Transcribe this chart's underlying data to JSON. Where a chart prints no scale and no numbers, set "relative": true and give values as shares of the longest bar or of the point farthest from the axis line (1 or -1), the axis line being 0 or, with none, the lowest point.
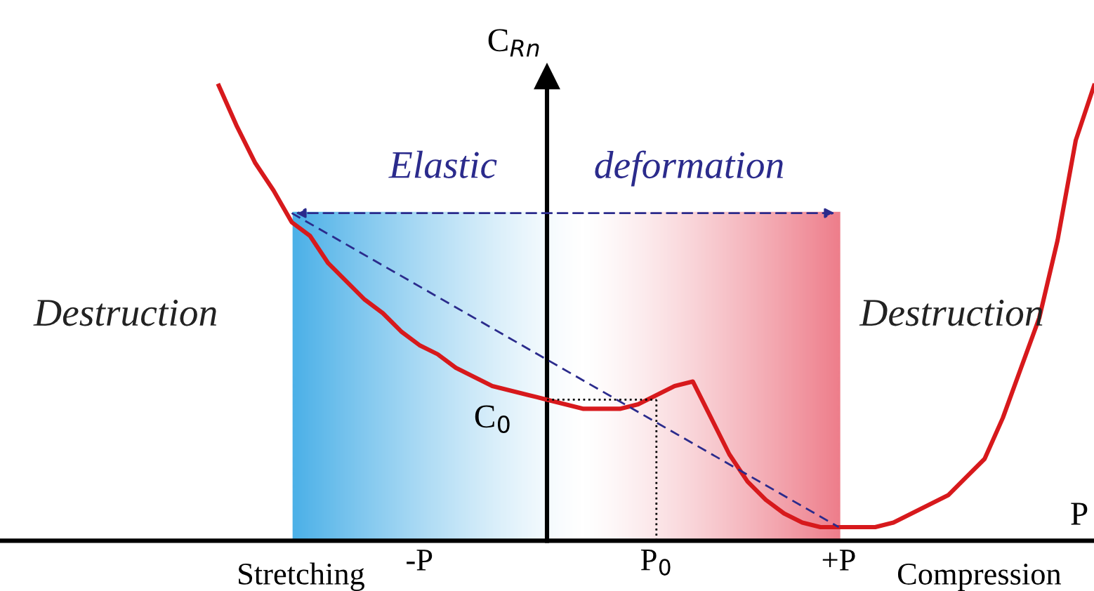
{
  "chart_data": {
    "type": "line",
    "relative": true,
    "xlabel": "P",
    "ylabel": "C$_{Rn}$",
    "categories": [
      null,
      null,
      null,
      null,
      null,
      null,
      null,
      null,
      null,
      null,
      null,
      "-P",
      null,
      null,
      null,
      null,
      null,
      null,
      null,
      null,
      null,
      null,
      null,
      null,
      "P$_{0}$",
      null,
      null,
      null,
      null,
      null,
      null,
      null,
      null,
      null,
      "+P",
      null,
      null,
      null,
      null,
      null,
      null,
      null,
      null,
      null,
      null,
      null,
      null,
      null,
      null
    ],
    "series": [
      {
        "color": "#d7191c",
        "line_style": "solid",
        "values": [
          1.0,
          0.91,
          0.83,
          0.77,
          0.7,
          0.67,
          0.61,
          0.57,
          0.53,
          0.5,
          0.46,
          0.43,
          0.41,
          0.38,
          0.36,
          0.34,
          0.33,
          0.32,
          0.31,
          0.3,
          0.29,
          0.29,
          0.29,
          0.3,
          0.32,
          0.34,
          0.35,
          0.27,
          0.19,
          0.13,
          0.09,
          0.06,
          0.04,
          0.03,
          0.03,
          0.03,
          0.03,
          0.04,
          0.06,
          0.08,
          0.1,
          0.14,
          0.18,
          0.27,
          0.38,
          0.49,
          0.66,
          0.88,
          1.0
        ]
      },
      {
        "color": "#2b2b8c",
        "line_style": "dashed",
        "values": [
          null,
          null,
          null,
          null,
          0.72,
          null,
          null,
          null,
          null,
          null,
          null,
          null,
          null,
          null,
          null,
          null,
          null,
          null,
          null,
          null,
          null,
          null,
          null,
          null,
          null,
          null,
          null,
          null,
          null,
          null,
          null,
          null,
          null,
          null,
          0.03,
          null,
          null,
          null,
          null,
          null,
          null,
          null,
          null,
          null,
          null,
          null,
          null,
          null,
          null
        ]
      },
      {
        "color": "#000000",
        "line_style": "dotted",
        "values": [
          null,
          null,
          null,
          null,
          null,
          null,
          null,
          null,
          null,
          null,
          null,
          null,
          null,
          null,
          null,
          null,
          null,
          null,
          0.31,
          null,
          null,
          null,
          null,
          null,
          0.31,
          null,
          null,
          null,
          null,
          null,
          null,
          null,
          null,
          null,
          null,
          null,
          null,
          null,
          null,
          null,
          null,
          null,
          null,
          null,
          null,
          null,
          null,
          null,
          null
        ]
      }
    ],
    "ref_lines": [
      {
        "axis": "x",
        "value": "P$_{0}$",
        "color": "#000000",
        "line_style": "dotted"
      }
    ],
    "annotations": [
      "Destruction",
      "Destruction",
      "Elastic",
      "deformation",
      "C$_{0}$",
      "Stretching",
      "Compression"
    ]
  }
}
